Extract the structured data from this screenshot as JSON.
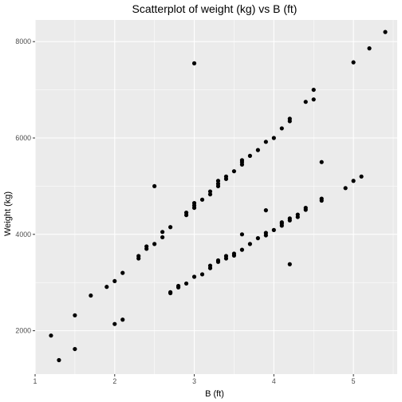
{
  "chart_data": {
    "type": "scatter",
    "title": "Scatterplot of weight (kg) vs B (ft)",
    "xlabel": "B (ft)",
    "ylabel": "Weight (kg)",
    "xlim": [
      1.0,
      5.55
    ],
    "ylim": [
      1100,
      8450
    ],
    "x_ticks": [
      1,
      2,
      3,
      4,
      5
    ],
    "y_ticks": [
      2000,
      4000,
      6000,
      8000
    ],
    "grid": true,
    "panel_background": "#EBEBEB",
    "grid_color": "#FFFFFF",
    "point_color": "#000000",
    "points": [
      {
        "x": 1.2,
        "y": 1900
      },
      {
        "x": 1.3,
        "y": 1390
      },
      {
        "x": 1.5,
        "y": 2320
      },
      {
        "x": 1.5,
        "y": 1620
      },
      {
        "x": 1.7,
        "y": 2730
      },
      {
        "x": 1.9,
        "y": 2910
      },
      {
        "x": 2.0,
        "y": 3030
      },
      {
        "x": 2.0,
        "y": 2140
      },
      {
        "x": 2.1,
        "y": 3200
      },
      {
        "x": 2.1,
        "y": 2230
      },
      {
        "x": 2.3,
        "y": 3500
      },
      {
        "x": 2.3,
        "y": 3550
      },
      {
        "x": 2.4,
        "y": 3700
      },
      {
        "x": 2.4,
        "y": 3750
      },
      {
        "x": 2.5,
        "y": 3800
      },
      {
        "x": 2.5,
        "y": 5000
      },
      {
        "x": 2.6,
        "y": 4050
      },
      {
        "x": 2.6,
        "y": 3940
      },
      {
        "x": 2.7,
        "y": 4150
      },
      {
        "x": 2.7,
        "y": 2780
      },
      {
        "x": 2.7,
        "y": 2800
      },
      {
        "x": 2.8,
        "y": 2900
      },
      {
        "x": 2.8,
        "y": 2930
      },
      {
        "x": 2.9,
        "y": 4400
      },
      {
        "x": 2.9,
        "y": 4450
      },
      {
        "x": 2.9,
        "y": 2980
      },
      {
        "x": 3.0,
        "y": 4550
      },
      {
        "x": 3.0,
        "y": 4600
      },
      {
        "x": 3.0,
        "y": 4650
      },
      {
        "x": 3.0,
        "y": 3120
      },
      {
        "x": 3.0,
        "y": 7550
      },
      {
        "x": 3.1,
        "y": 4720
      },
      {
        "x": 3.1,
        "y": 3170
      },
      {
        "x": 3.2,
        "y": 4830
      },
      {
        "x": 3.2,
        "y": 4890
      },
      {
        "x": 3.2,
        "y": 3300
      },
      {
        "x": 3.2,
        "y": 3350
      },
      {
        "x": 3.3,
        "y": 5000
      },
      {
        "x": 3.3,
        "y": 5050
      },
      {
        "x": 3.3,
        "y": 5110
      },
      {
        "x": 3.3,
        "y": 3430
      },
      {
        "x": 3.3,
        "y": 3460
      },
      {
        "x": 3.4,
        "y": 5150
      },
      {
        "x": 3.4,
        "y": 5200
      },
      {
        "x": 3.4,
        "y": 3500
      },
      {
        "x": 3.4,
        "y": 3550
      },
      {
        "x": 3.5,
        "y": 5310
      },
      {
        "x": 3.5,
        "y": 3560
      },
      {
        "x": 3.5,
        "y": 3600
      },
      {
        "x": 3.6,
        "y": 5450
      },
      {
        "x": 3.6,
        "y": 5500
      },
      {
        "x": 3.6,
        "y": 5540
      },
      {
        "x": 3.6,
        "y": 3680
      },
      {
        "x": 3.6,
        "y": 4000
      },
      {
        "x": 3.7,
        "y": 5630
      },
      {
        "x": 3.7,
        "y": 3800
      },
      {
        "x": 3.8,
        "y": 5750
      },
      {
        "x": 3.8,
        "y": 3920
      },
      {
        "x": 3.9,
        "y": 5920
      },
      {
        "x": 3.9,
        "y": 3980
      },
      {
        "x": 3.9,
        "y": 4030
      },
      {
        "x": 3.9,
        "y": 4500
      },
      {
        "x": 4.0,
        "y": 6000
      },
      {
        "x": 4.0,
        "y": 4090
      },
      {
        "x": 4.1,
        "y": 6200
      },
      {
        "x": 4.1,
        "y": 4180
      },
      {
        "x": 4.1,
        "y": 4220
      },
      {
        "x": 4.1,
        "y": 4250
      },
      {
        "x": 4.2,
        "y": 6350
      },
      {
        "x": 4.2,
        "y": 6400
      },
      {
        "x": 4.2,
        "y": 4290
      },
      {
        "x": 4.2,
        "y": 4330
      },
      {
        "x": 4.2,
        "y": 3380
      },
      {
        "x": 4.3,
        "y": 4360
      },
      {
        "x": 4.3,
        "y": 4410
      },
      {
        "x": 4.4,
        "y": 6750
      },
      {
        "x": 4.4,
        "y": 4510
      },
      {
        "x": 4.4,
        "y": 4550
      },
      {
        "x": 4.5,
        "y": 6800
      },
      {
        "x": 4.5,
        "y": 7000
      },
      {
        "x": 4.6,
        "y": 5500
      },
      {
        "x": 4.6,
        "y": 4700
      },
      {
        "x": 4.6,
        "y": 4740
      },
      {
        "x": 4.9,
        "y": 4960
      },
      {
        "x": 5.0,
        "y": 7570
      },
      {
        "x": 5.0,
        "y": 5110
      },
      {
        "x": 5.1,
        "y": 5200
      },
      {
        "x": 5.2,
        "y": 7860
      },
      {
        "x": 5.4,
        "y": 8200
      }
    ]
  }
}
